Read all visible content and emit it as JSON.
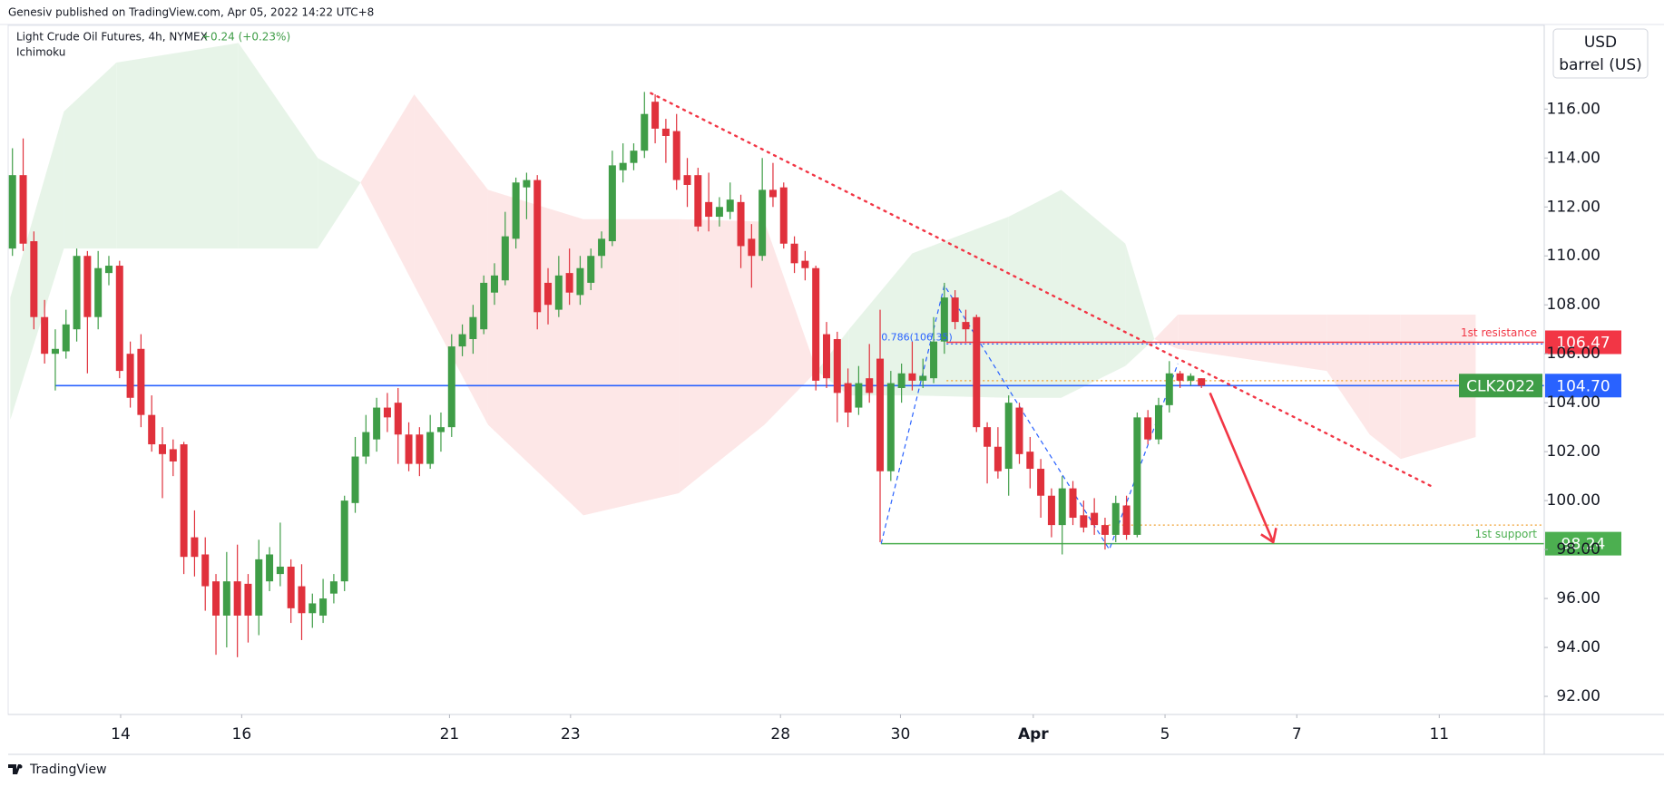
{
  "header": {
    "publisher": "Genesiv published on TradingView.com, Apr 05, 2022 14:22 UTC+8",
    "footer": "TradingView"
  },
  "chart_data": {
    "type": "candlestick",
    "title": "Light Crude Oil Futures, 4h, NYMEX",
    "change": "+0.24 (+0.23%)",
    "indicator": "Ichimoku",
    "currency": "USD",
    "unit": "barrel (US)",
    "up_color": "#3f9d47",
    "down_color": "#e0313c",
    "candles": {
      "open": [
        110.3,
        113.3,
        110.6,
        107.5,
        106.0,
        106.1,
        107.0,
        110.0,
        107.5,
        109.3,
        109.6,
        106.0,
        106.2,
        103.5,
        102.3,
        102.1,
        102.3,
        98.5,
        97.8,
        96.7,
        95.3,
        96.7,
        96.6,
        95.3,
        96.7,
        97.0,
        97.3,
        96.5,
        95.4,
        95.3,
        96.2,
        96.7,
        99.9,
        101.8,
        102.5,
        103.8,
        104.0,
        102.7,
        102.7,
        101.5,
        102.8,
        103.0,
        106.3,
        106.6,
        107.0,
        108.5,
        109.0,
        110.7,
        112.8,
        113.1,
        108.9,
        107.8,
        109.3,
        108.4,
        108.9,
        110.0,
        110.6,
        113.5,
        113.8,
        114.3,
        116.3,
        115.2,
        115.1,
        113.3,
        113.3,
        112.2,
        111.6,
        111.8,
        112.2,
        110.7,
        110.0,
        112.7,
        112.8,
        110.5,
        109.8,
        109.5,
        106.8,
        106.6,
        104.8,
        103.8,
        105.0,
        105.8,
        101.2,
        104.6,
        105.2,
        104.9,
        105.0,
        106.5,
        108.3,
        107.3,
        107.5,
        103.0,
        102.2,
        101.3,
        103.8,
        102.0,
        101.3,
        100.2,
        99.0,
        100.5,
        99.4,
        99.5,
        99.0,
        98.6,
        99.8,
        98.6,
        103.4,
        102.5,
        103.9,
        105.2,
        104.9,
        105.0
      ],
      "high": [
        114.4,
        114.8,
        111.0,
        108.2,
        107.0,
        107.8,
        110.3,
        110.2,
        110.2,
        110.0,
        109.8,
        106.5,
        106.8,
        104.3,
        103.0,
        102.5,
        102.4,
        99.6,
        98.5,
        97.0,
        97.9,
        98.2,
        97.0,
        98.4,
        98.1,
        99.1,
        97.6,
        97.4,
        96.2,
        96.8,
        97.0,
        100.2,
        102.6,
        103.5,
        104.2,
        104.4,
        104.6,
        103.2,
        103.0,
        103.5,
        103.6,
        106.8,
        107.2,
        108.0,
        109.2,
        109.7,
        111.8,
        113.2,
        113.4,
        113.3,
        109.5,
        110.0,
        110.3,
        110.0,
        110.3,
        111.0,
        114.3,
        114.6,
        114.6,
        116.7,
        116.6,
        115.6,
        115.8,
        114.0,
        113.6,
        113.4,
        112.4,
        113.0,
        112.5,
        111.3,
        114.0,
        113.8,
        113.0,
        110.8,
        110.2,
        109.6,
        107.3,
        106.9,
        105.4,
        105.5,
        106.4,
        107.8,
        105.3,
        105.6,
        106.5,
        105.8,
        107.5,
        108.9,
        108.6,
        107.8,
        107.6,
        103.2,
        103.0,
        104.3,
        104.0,
        102.6,
        101.7,
        100.5,
        101.0,
        100.8,
        100.0,
        100.1,
        99.3,
        100.2,
        100.2,
        103.6,
        103.7,
        104.2,
        105.7,
        105.3,
        105.2,
        105.0
      ],
      "low": [
        110.0,
        110.2,
        107.0,
        105.6,
        104.5,
        105.8,
        106.5,
        105.2,
        107.0,
        108.8,
        105.0,
        103.8,
        103.0,
        102.0,
        100.1,
        101.0,
        97.0,
        96.9,
        95.5,
        93.7,
        94.0,
        93.6,
        94.2,
        94.5,
        96.3,
        96.5,
        95.0,
        94.3,
        94.8,
        95.0,
        95.8,
        96.3,
        99.5,
        101.5,
        102.0,
        102.8,
        101.5,
        101.2,
        101.0,
        101.3,
        102.0,
        102.6,
        105.9,
        106.0,
        106.8,
        108.0,
        108.8,
        110.3,
        111.5,
        107.0,
        107.2,
        107.5,
        108.0,
        108.0,
        108.6,
        109.5,
        110.4,
        113.0,
        113.5,
        114.0,
        114.6,
        113.8,
        112.7,
        112.0,
        111.0,
        111.0,
        111.2,
        111.5,
        109.5,
        108.7,
        109.8,
        112.0,
        110.3,
        109.3,
        109.0,
        104.5,
        104.6,
        103.2,
        103.0,
        103.5,
        104.0,
        98.3,
        100.8,
        104.0,
        104.5,
        104.6,
        104.8,
        106.0,
        107.0,
        106.5,
        102.8,
        100.7,
        100.9,
        100.2,
        101.5,
        100.5,
        99.3,
        98.5,
        97.8,
        99.0,
        98.7,
        98.6,
        98.0,
        98.3,
        98.4,
        98.5,
        102.3,
        102.3,
        103.6,
        104.6,
        104.7,
        104.6
      ],
      "close": [
        113.3,
        110.5,
        107.5,
        106.0,
        106.2,
        107.2,
        110.0,
        107.5,
        109.5,
        109.6,
        105.3,
        104.2,
        103.5,
        102.3,
        101.9,
        101.6,
        97.7,
        97.7,
        96.5,
        95.3,
        96.7,
        95.3,
        95.3,
        97.6,
        97.8,
        97.3,
        95.6,
        95.4,
        95.8,
        96.0,
        96.7,
        100.0,
        101.8,
        102.8,
        103.8,
        103.4,
        102.7,
        101.5,
        101.5,
        102.8,
        103.0,
        106.3,
        106.8,
        107.5,
        108.9,
        109.2,
        110.8,
        113.0,
        113.1,
        107.7,
        108.0,
        109.2,
        108.5,
        109.5,
        110.0,
        110.7,
        113.7,
        113.8,
        114.3,
        115.8,
        115.2,
        114.9,
        113.1,
        112.9,
        111.2,
        111.6,
        112.0,
        112.3,
        110.4,
        110.0,
        112.7,
        112.4,
        110.5,
        109.7,
        109.5,
        104.9,
        105.0,
        104.4,
        103.6,
        104.8,
        104.4,
        101.2,
        104.8,
        105.2,
        104.9,
        105.1,
        106.5,
        108.3,
        107.3,
        107.0,
        103.0,
        102.2,
        101.2,
        104.0,
        101.9,
        101.3,
        100.2,
        99.0,
        100.5,
        99.3,
        98.9,
        99.0,
        98.6,
        99.9,
        98.6,
        103.4,
        102.5,
        103.9,
        105.2,
        104.9,
        105.1,
        104.7
      ]
    },
    "ichimoku": {
      "x": [
        -0.2,
        4.8,
        9.7,
        21.1,
        28.5,
        32.5,
        37.5,
        44.4,
        53.3,
        62.2,
        70.2,
        75.1,
        78.1,
        84.0,
        93.0,
        97.9,
        103.9,
        106.6,
        108.8,
        122.7,
        126.7,
        129.6,
        136.6
      ],
      "span_a": [
        108.3,
        115.9,
        117.9,
        118.7,
        114.0,
        113.0,
        108.8,
        103.1,
        99.4,
        100.3,
        103.1,
        105.3,
        107.0,
        110.1,
        111.6,
        112.7,
        110.5,
        106.6,
        106.2,
        105.3,
        102.7,
        101.7,
        102.6
      ],
      "span_b": [
        103.3,
        110.3,
        110.3,
        110.3,
        110.3,
        113.0,
        116.6,
        112.7,
        111.5,
        111.5,
        111.4,
        105.3,
        104.3,
        104.3,
        104.2,
        104.2,
        105.5,
        106.6,
        107.6,
        107.6,
        107.6,
        107.6,
        107.6
      ],
      "up_color": "#e7f4e8",
      "down_color": "#fde7e7"
    },
    "xlim": [
      -0.4,
      143
    ],
    "ylim": [
      91.26,
      119.42
    ],
    "xticks": [
      {
        "value": 10.1,
        "label": "14"
      },
      {
        "value": 21.4,
        "label": "16"
      },
      {
        "value": 40.8,
        "label": "21"
      },
      {
        "value": 52.1,
        "label": "23"
      },
      {
        "value": 71.7,
        "label": "28"
      },
      {
        "value": 82.9,
        "label": "30"
      },
      {
        "value": 95.3,
        "label": "Apr"
      },
      {
        "value": 107.6,
        "label": "5"
      },
      {
        "value": 119.9,
        "label": "7"
      },
      {
        "value": 133.2,
        "label": "11"
      }
    ],
    "yticks": [
      {
        "value": 92,
        "label": "92.00"
      },
      {
        "value": 94,
        "label": "94.00"
      },
      {
        "value": 96,
        "label": "96.00"
      },
      {
        "value": 98,
        "label": "98.00"
      },
      {
        "value": 100,
        "label": "100.00"
      },
      {
        "value": 102,
        "label": "102.00"
      },
      {
        "value": 104,
        "label": "104.00"
      },
      {
        "value": 106,
        "label": "106.00"
      },
      {
        "value": 108,
        "label": "108.00"
      },
      {
        "value": 110,
        "label": "110.00"
      },
      {
        "value": 112,
        "label": "112.00"
      },
      {
        "value": 114,
        "label": "114.00"
      },
      {
        "value": 116,
        "label": "116.00"
      }
    ],
    "levels": [
      {
        "name": "1st resistance",
        "value": 106.47,
        "label": "106.47",
        "color": "#f23645",
        "tag_color": "#f23645",
        "start": 87.2
      },
      {
        "name": "CLK2022",
        "value": 104.7,
        "label": "104.70",
        "color": "#2962ff",
        "tag_color": "#3f9d47",
        "start": 4.0
      },
      {
        "name": "1st support",
        "value": 98.24,
        "label": "98.24",
        "color": "#4caf50",
        "tag_color": "#4caf50",
        "start": 81.1
      }
    ],
    "dotted_levels": [
      {
        "value": 99.0,
        "start": 101.9,
        "color": "#f0a030"
      },
      {
        "value": 104.9,
        "start": 87.2,
        "color": "#f0a030"
      },
      {
        "value": 106.4,
        "start": 87.2,
        "color": "#2962ff"
      }
    ],
    "trendline": {
      "x": [
        59.6,
        132.4
      ],
      "y": [
        116.65,
        100.6
      ],
      "color": "#f23645"
    },
    "arrow": {
      "x": [
        111.8,
        117.7
      ],
      "y": [
        104.4,
        98.3
      ],
      "color": "#f23645"
    },
    "fib_path": {
      "x": [
        81.1,
        87.0,
        93.5,
        102.4,
        108.8
      ],
      "y": [
        98.24,
        108.8,
        104.2,
        98.0,
        105.6
      ],
      "label": "0.786(106.35)",
      "color": "#2962ff"
    }
  }
}
